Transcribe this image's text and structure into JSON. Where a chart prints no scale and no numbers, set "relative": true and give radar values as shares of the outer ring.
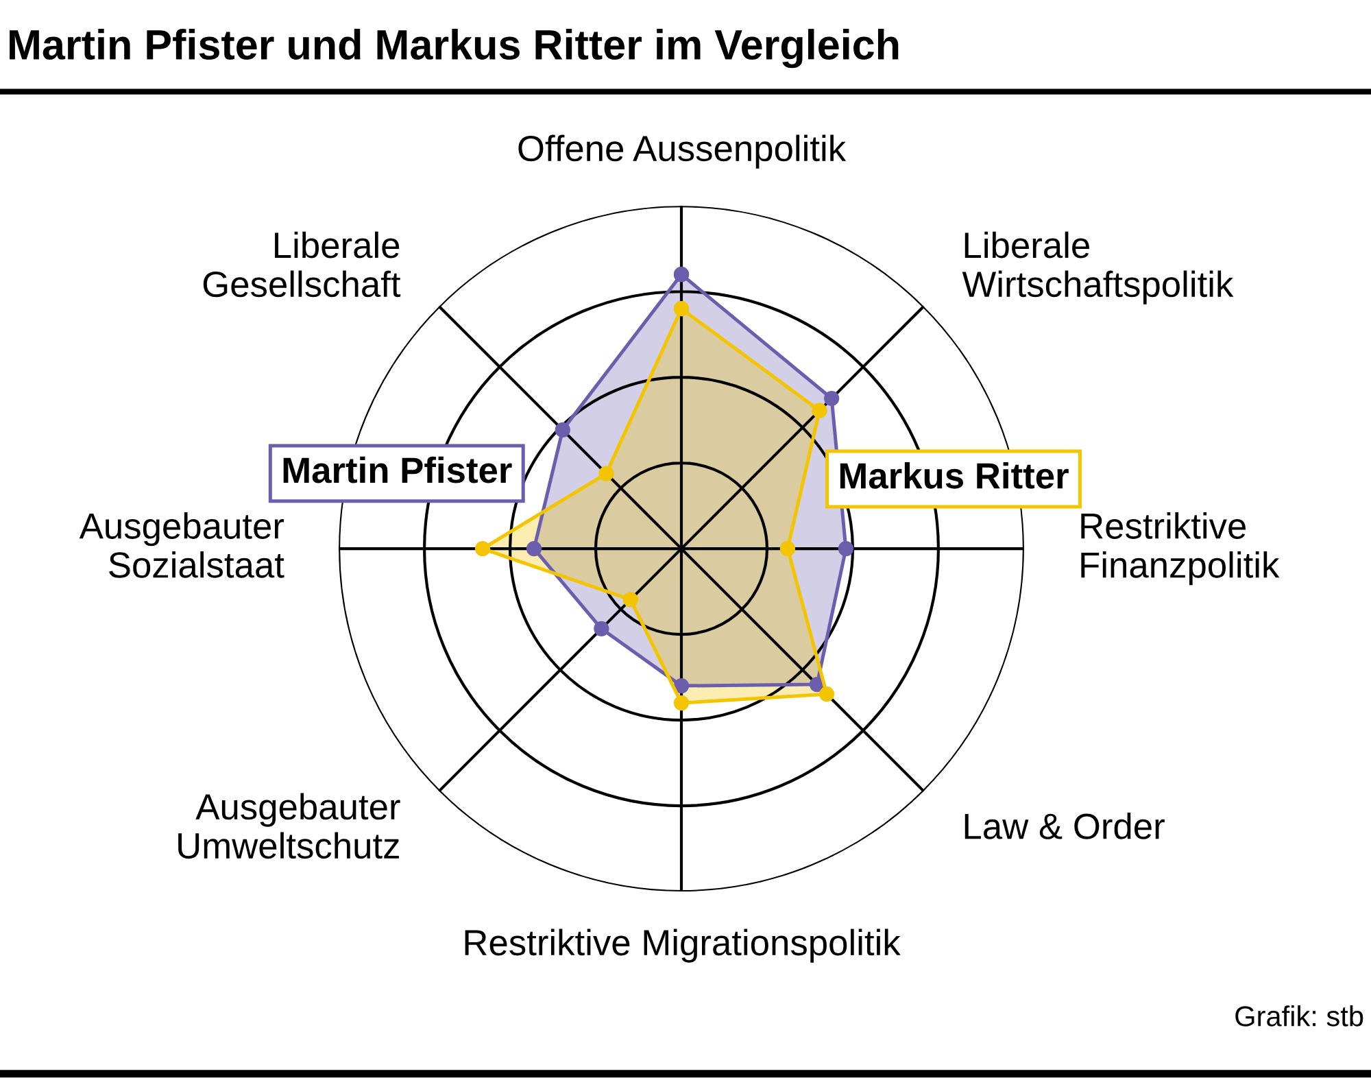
{
  "chart_data": {
    "type": "radar",
    "title": "Martin Pfister und Markus Ritter im Vergleich",
    "categories": [
      "Offene Aussenpolitik",
      "Liberale\nWirtschaftspolitik",
      "Restriktive\nFinanzpolitik",
      "Law & Order",
      "Restriktive Migrationspolitik",
      "Ausgebauter\nUmweltschutz",
      "Ausgebauter\nSozialstaat",
      "Liberale\nGesellschaft"
    ],
    "relative": true,
    "grid": true,
    "legend": false,
    "marker": "circle",
    "series": [
      {
        "name": "Martin Pfister",
        "color": "#6b5fad",
        "values": [
          0.8,
          0.62,
          0.48,
          0.56,
          0.4,
          0.33,
          0.43,
          0.49
        ]
      },
      {
        "name": "Markus Ritter",
        "color": "#f2c500",
        "values": [
          0.7,
          0.57,
          0.31,
          0.6,
          0.45,
          0.21,
          0.58,
          0.31
        ]
      }
    ],
    "annotations": [
      "Grafik: stb"
    ]
  }
}
